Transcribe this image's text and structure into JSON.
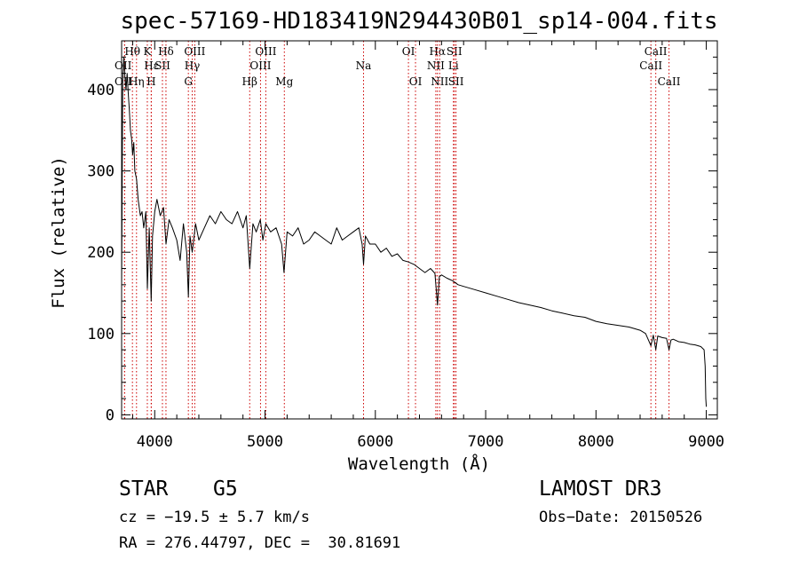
{
  "chart_data": {
    "type": "line",
    "title": "spec-57169-HD183419N294430B01_sp14-004.fits",
    "xlabel": "Wavelength (Å)",
    "ylabel": "Flux (relative)",
    "xlim": [
      3700,
      9100
    ],
    "ylim": [
      -5,
      460
    ],
    "xticks": [
      4000,
      5000,
      6000,
      7000,
      8000,
      9000
    ],
    "yticks": [
      0,
      100,
      200,
      300,
      400
    ],
    "grid": false,
    "series": [
      {
        "name": "flux",
        "color": "#000000",
        "x": [
          3700,
          3710,
          3720,
          3730,
          3740,
          3750,
          3760,
          3770,
          3780,
          3790,
          3800,
          3810,
          3820,
          3835,
          3850,
          3870,
          3885,
          3900,
          3920,
          3933,
          3950,
          3968,
          3980,
          4000,
          4020,
          4050,
          4080,
          4102,
          4130,
          4160,
          4200,
          4230,
          4260,
          4290,
          4305,
          4320,
          4340,
          4370,
          4400,
          4450,
          4500,
          4550,
          4600,
          4650,
          4700,
          4750,
          4800,
          4830,
          4861,
          4890,
          4920,
          4957,
          4980,
          5007,
          5050,
          5100,
          5150,
          5172,
          5200,
          5250,
          5300,
          5350,
          5400,
          5450,
          5500,
          5550,
          5600,
          5650,
          5700,
          5750,
          5800,
          5850,
          5880,
          5893,
          5910,
          5950,
          6000,
          6050,
          6100,
          6150,
          6200,
          6250,
          6300,
          6350,
          6400,
          6450,
          6500,
          6540,
          6563,
          6580,
          6600,
          6650,
          6700,
          6750,
          6800,
          6900,
          7000,
          7100,
          7200,
          7300,
          7400,
          7500,
          7600,
          7700,
          7800,
          7900,
          8000,
          8100,
          8200,
          8300,
          8400,
          8450,
          8498,
          8520,
          8542,
          8560,
          8600,
          8640,
          8662,
          8680,
          8700,
          8750,
          8800,
          8850,
          8900,
          8950,
          8980,
          8990,
          8995,
          9000
        ],
        "y": [
          160,
          410,
          440,
          415,
          400,
          420,
          395,
          375,
          350,
          340,
          320,
          335,
          300,
          290,
          265,
          245,
          250,
          230,
          250,
          155,
          230,
          140,
          220,
          250,
          265,
          245,
          255,
          210,
          240,
          230,
          215,
          190,
          235,
          200,
          145,
          220,
          200,
          235,
          215,
          230,
          245,
          235,
          250,
          240,
          235,
          250,
          230,
          245,
          180,
          235,
          225,
          240,
          215,
          235,
          225,
          230,
          210,
          175,
          225,
          220,
          230,
          210,
          215,
          225,
          220,
          215,
          210,
          230,
          215,
          220,
          225,
          230,
          210,
          185,
          220,
          210,
          210,
          200,
          205,
          195,
          198,
          190,
          188,
          185,
          180,
          175,
          180,
          174,
          135,
          170,
          172,
          168,
          165,
          160,
          158,
          154,
          150,
          146,
          142,
          138,
          135,
          132,
          128,
          125,
          122,
          120,
          115,
          112,
          110,
          108,
          104,
          100,
          85,
          98,
          80,
          97,
          95,
          94,
          80,
          92,
          93,
          90,
          89,
          87,
          86,
          84,
          80,
          60,
          20,
          10
        ]
      }
    ],
    "line_markers": [
      {
        "label": "OII",
        "wavelength": 3727,
        "row": 2,
        "side": "left"
      },
      {
        "label": "OII",
        "wavelength": 3727,
        "row": 3,
        "side": "left"
      },
      {
        "label": "Hθ",
        "wavelength": 3798,
        "row": 1,
        "side": "center"
      },
      {
        "label": "Hη",
        "wavelength": 3835,
        "row": 3,
        "side": "center"
      },
      {
        "label": "K",
        "wavelength": 3933,
        "row": 1,
        "side": "center"
      },
      {
        "label": "H",
        "wavelength": 3968,
        "row": 3,
        "side": "center"
      },
      {
        "label": "Hε",
        "wavelength": 3970,
        "row": 2,
        "side": "center"
      },
      {
        "label": "SII",
        "wavelength": 4070,
        "row": 2,
        "side": "center"
      },
      {
        "label": "Hδ",
        "wavelength": 4102,
        "row": 1,
        "side": "center"
      },
      {
        "label": "OIII",
        "wavelength": 4363,
        "row": 1,
        "side": "center"
      },
      {
        "label": "Hγ",
        "wavelength": 4340,
        "row": 2,
        "side": "center"
      },
      {
        "label": "G",
        "wavelength": 4305,
        "row": 3,
        "side": "center"
      },
      {
        "label": "Hβ",
        "wavelength": 4861,
        "row": 3,
        "side": "center"
      },
      {
        "label": "OIII",
        "wavelength": 5007,
        "row": 1,
        "side": "center"
      },
      {
        "label": "OIII",
        "wavelength": 4959,
        "row": 2,
        "side": "center"
      },
      {
        "label": "Mg",
        "wavelength": 5175,
        "row": 3,
        "side": "center"
      },
      {
        "label": "Na",
        "wavelength": 5893,
        "row": 2,
        "side": "center"
      },
      {
        "label": "OI",
        "wavelength": 6300,
        "row": 1,
        "side": "center"
      },
      {
        "label": "OI",
        "wavelength": 6364,
        "row": 3,
        "side": "center"
      },
      {
        "label": "Hα",
        "wavelength": 6563,
        "row": 1,
        "side": "center"
      },
      {
        "label": "NII",
        "wavelength": 6548,
        "row": 2,
        "side": "center"
      },
      {
        "label": "NII",
        "wavelength": 6583,
        "row": 3,
        "side": "center"
      },
      {
        "label": "SII",
        "wavelength": 6716,
        "row": 1,
        "side": "center"
      },
      {
        "label": "Li",
        "wavelength": 6708,
        "row": 2,
        "side": "center"
      },
      {
        "label": "SII",
        "wavelength": 6731,
        "row": 3,
        "side": "center"
      },
      {
        "label": "CaII",
        "wavelength": 8542,
        "row": 1,
        "side": "center"
      },
      {
        "label": "CaII",
        "wavelength": 8498,
        "row": 2,
        "side": "center"
      },
      {
        "label": "CaII",
        "wavelength": 8662,
        "row": 3,
        "side": "center"
      }
    ]
  },
  "info": {
    "object_class": "STAR",
    "subclass": "G5",
    "survey": "LAMOST DR3",
    "cz": "cz = −19.5 ± 5.7 km/s",
    "obs_date": "Obs−Date: 20150526",
    "coords": "RA = 276.44797, DEC =  30.81691"
  },
  "colors": {
    "axis": "#000000",
    "spectrum": "#000000",
    "line_marker": "#cc0000"
  }
}
